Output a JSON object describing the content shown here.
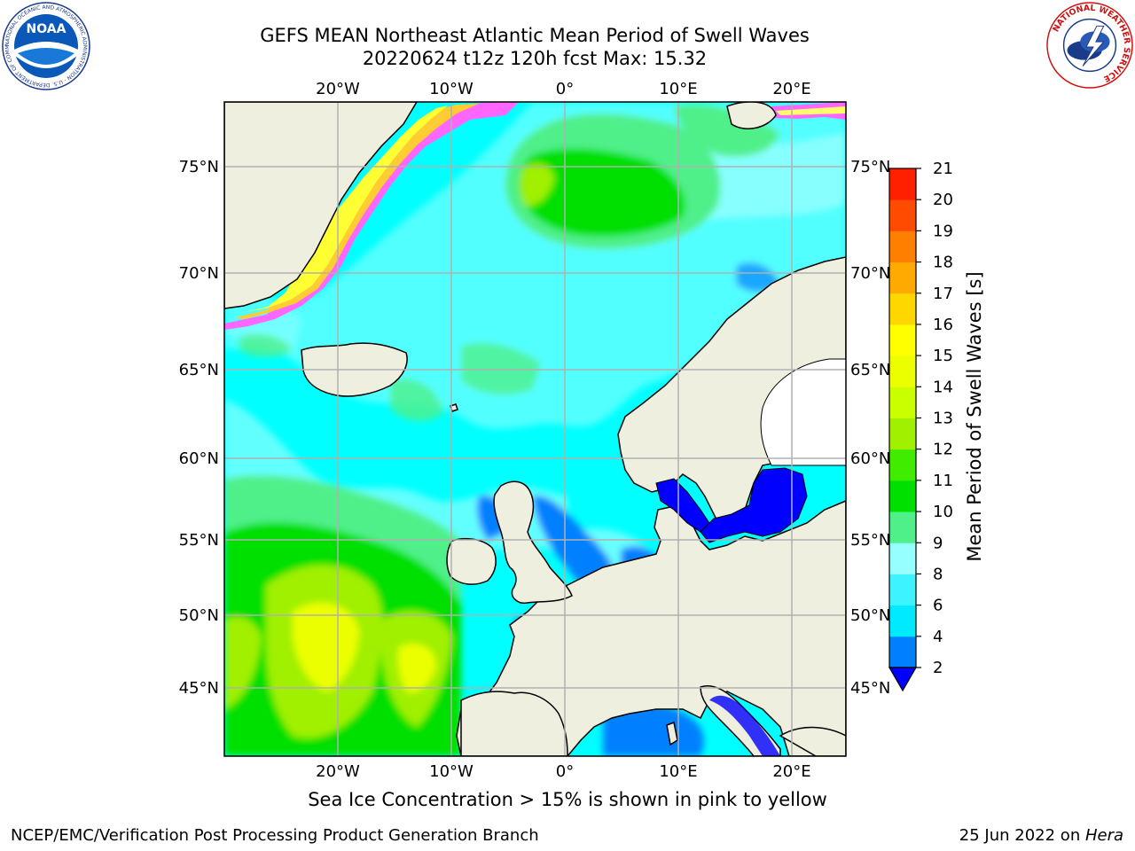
{
  "header": {
    "title_line1": "GEFS MEAN Northeast Atlantic Mean Period of Swell Waves",
    "title_line2": "20220624 t12z 120h fcst   Max: 15.32"
  },
  "logos": {
    "left": "NOAA",
    "left_ring": "NATIONAL OCEANIC AND ATMOSPHERIC ADMINISTRATION · U.S. DEPARTMENT OF COMMERCE",
    "right_ring": "NATIONAL WEATHER SERVICE"
  },
  "map": {
    "lon_labels": [
      "20°W",
      "10°W",
      "0°",
      "10°E",
      "20°E"
    ],
    "lat_labels": [
      "75°N",
      "70°N",
      "65°N",
      "60°N",
      "55°N",
      "50°N",
      "45°N"
    ],
    "colors": {
      "ocean_base": "#00ffff",
      "land": "#efefdf",
      "grid": "#b0b0b0"
    }
  },
  "colorbar": {
    "label": "Mean Period of Swell Waves [s]",
    "ticks": [
      "2",
      "4",
      "6",
      "8",
      "9",
      "10",
      "11",
      "12",
      "13",
      "14",
      "15",
      "16",
      "17",
      "18",
      "19",
      "20",
      "21"
    ],
    "colors": [
      "#0f30f0",
      "#0080ff",
      "#00eaff",
      "#3cf3ff",
      "#96ffff",
      "#4ff08a",
      "#00e000",
      "#40ec00",
      "#a0f000",
      "#caff00",
      "#ecff00",
      "#ffff00",
      "#ffd700",
      "#ffaa00",
      "#ff8000",
      "#ff4b00",
      "#ff2000",
      "#ff0000"
    ],
    "extend_color": "#0000ff"
  },
  "notes": {
    "ice": "Sea Ice Concentration > 15% is shown in pink to yellow"
  },
  "footer": {
    "left": "NCEP/EMC/Verification Post Processing Product Generation Branch",
    "right_date": "25 Jun 2022 on ",
    "right_host": "Hera"
  }
}
